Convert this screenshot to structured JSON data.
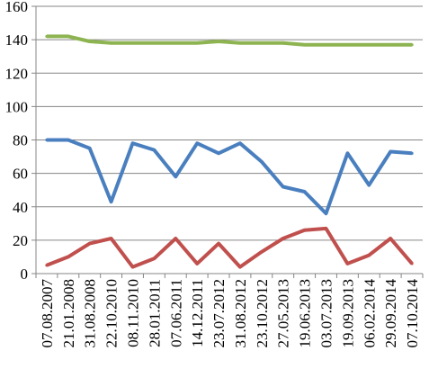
{
  "chart_data": {
    "type": "line",
    "title": "",
    "xlabel": "",
    "ylabel": "",
    "ylim": [
      0,
      160
    ],
    "yticks": [
      0,
      20,
      40,
      60,
      80,
      100,
      120,
      140,
      160
    ],
    "grid": "horizontal",
    "legend": "none",
    "categories": [
      "07.08.2007",
      "21.01.2008",
      "31.08.2008",
      "22.10.2010",
      "08.11.2010",
      "28.01.2011",
      "07.06.2011",
      "14.12.2011",
      "23.07.2012",
      "31.08.2012",
      "23.10.2012",
      "27.05.2013",
      "19.06.2013",
      "03.07.2013",
      "19.09.2013",
      "06.02.2014",
      "29.09.2014",
      "07.10.2014"
    ],
    "series": [
      {
        "color": "#8db451",
        "values": [
          142,
          142,
          139,
          138,
          138,
          138,
          138,
          138,
          139,
          138,
          138,
          138,
          137,
          137,
          137,
          137,
          137,
          137
        ]
      },
      {
        "color": "#4a7fbf",
        "values": [
          80,
          80,
          75,
          43,
          78,
          74,
          58,
          78,
          72,
          78,
          67,
          52,
          49,
          36,
          72,
          53,
          73,
          72
        ]
      },
      {
        "color": "#c0504d",
        "values": [
          5,
          10,
          18,
          21,
          4,
          9,
          21,
          6,
          18,
          4,
          13,
          21,
          26,
          27,
          6,
          11,
          21,
          6
        ]
      }
    ]
  }
}
